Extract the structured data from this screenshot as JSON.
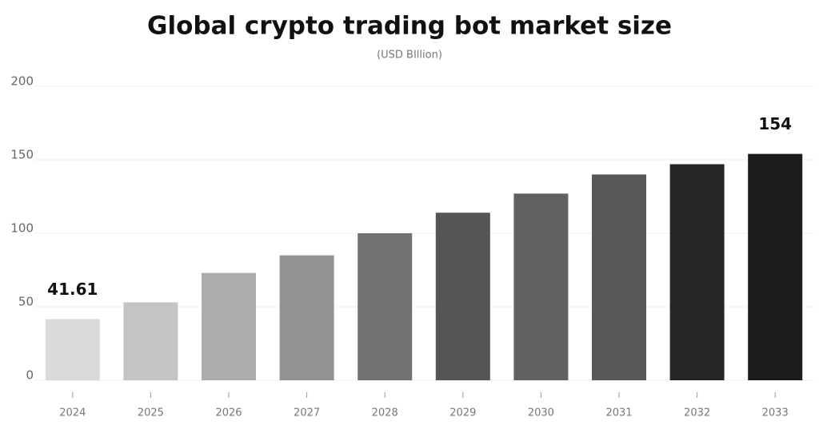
{
  "chart_data": {
    "type": "bar",
    "title": "Global crypto trading bot market size",
    "subtitle": "(USD BIllion)",
    "categories": [
      "2024",
      "2025",
      "2026",
      "2027",
      "2028",
      "2029",
      "2030",
      "2031",
      "2032",
      "2033"
    ],
    "values": [
      41.61,
      53,
      73,
      85,
      100,
      114,
      127,
      140,
      147,
      154
    ],
    "colors": [
      "#dadada",
      "#c4c4c4",
      "#acacac",
      "#939393",
      "#727272",
      "#555555",
      "#616161",
      "#585858",
      "#262626",
      "#1c1c1c"
    ],
    "labeled": [
      0,
      9
    ],
    "ylim": [
      0,
      200
    ],
    "yticks": [
      0,
      50,
      100,
      150,
      200
    ],
    "grid": true
  }
}
